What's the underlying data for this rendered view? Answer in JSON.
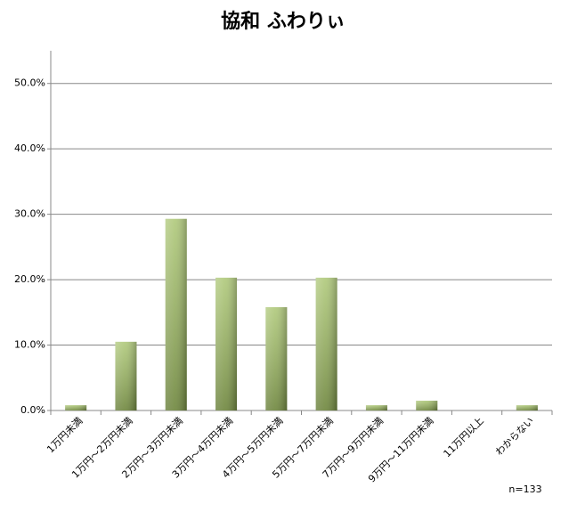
{
  "chart_data": {
    "type": "bar",
    "title": "協和 ふわりぃ",
    "categories": [
      "1万円未満",
      "1万円～2万円未満",
      "2万円～3万円未満",
      "3万円～4万円未満",
      "4万円～5万円未満",
      "5万円～7万円未満",
      "7万円～9万円未満",
      "9万円～11万円未満",
      "11万円以上",
      "わからない"
    ],
    "values": [
      0.8,
      10.5,
      29.3,
      20.3,
      15.8,
      20.3,
      0.8,
      1.5,
      0,
      0.8
    ],
    "color": "#9bbb59",
    "ylim": [
      0,
      55
    ],
    "yticks": [
      {
        "value": 0,
        "label": "0.0%"
      },
      {
        "value": 10,
        "label": "10.0%"
      },
      {
        "value": 20,
        "label": "20.0%"
      },
      {
        "value": 30,
        "label": "30.0%"
      },
      {
        "value": 40,
        "label": "40.0%"
      },
      {
        "value": 50,
        "label": "50.0%"
      }
    ],
    "grid": true,
    "annotation": "n=133"
  }
}
